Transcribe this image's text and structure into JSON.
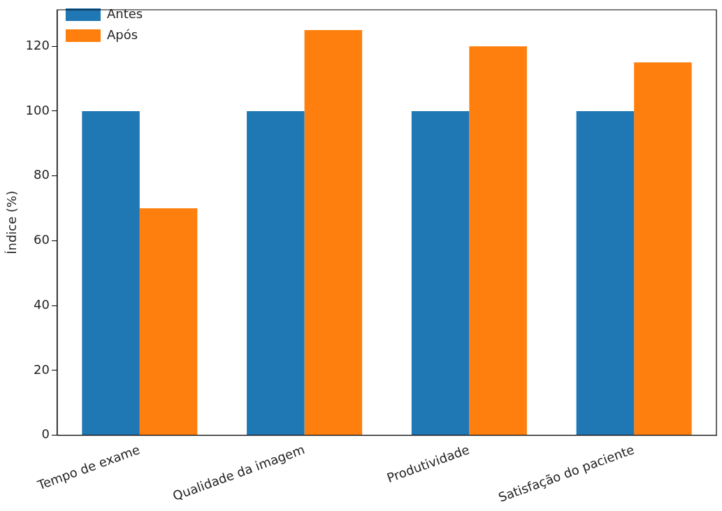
{
  "chart_data": {
    "type": "bar",
    "ylabel": "Índice (%)",
    "categories": [
      "Tempo de exame",
      "Qualidade da imagem",
      "Produtividade",
      "Satisfação do paciente"
    ],
    "series": [
      {
        "name": "Antes",
        "color": "#1f77b4",
        "values": [
          100,
          100,
          100,
          100
        ]
      },
      {
        "name": "Após",
        "color": "#ff7f0e",
        "values": [
          70,
          125,
          120,
          115
        ]
      }
    ],
    "ylim": [
      0,
      131.25
    ],
    "yticks": [
      0,
      20,
      40,
      60,
      80,
      100,
      120
    ],
    "grid": false,
    "legend": "top left"
  }
}
